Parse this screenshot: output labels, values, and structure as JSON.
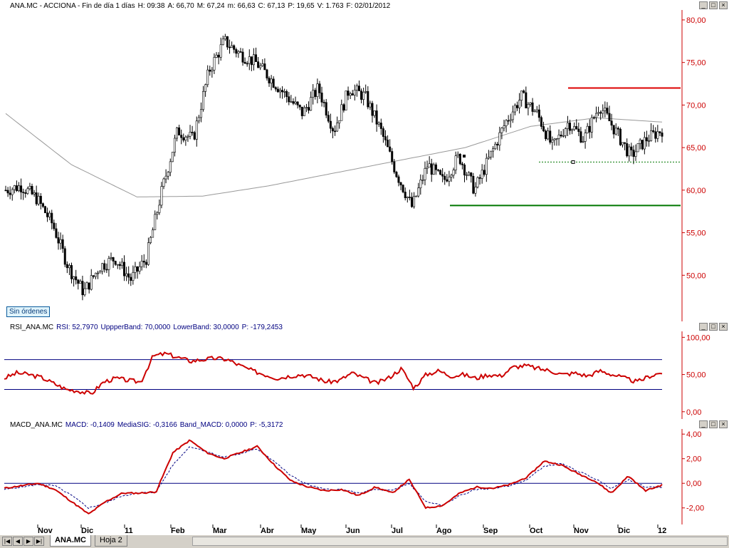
{
  "main_panel": {
    "title_parts": [
      "ANA.MC - ACCIONA - Fin de día 1 días",
      "H: 09:38",
      "A: 66,70",
      "M: 67,24",
      "m: 66,63",
      "C: 67,13",
      "P: 19,65",
      "V: 1.763",
      "F: 02/01/2012"
    ],
    "status_badge": "Sin órdenes",
    "colors": {
      "price_axis": "#cc0000",
      "resistance": "#dd0000",
      "support": "#007700",
      "ma": "#999999"
    }
  },
  "rsi_panel": {
    "title_parts": [
      "RSI_ANA.MC",
      "RSI: 52,7970",
      "UppperBand: 70,0000",
      "LowerBand: 30,0000",
      "P: -179,2453"
    ],
    "colors": {
      "line": "#cc0000",
      "band": "#000080"
    }
  },
  "macd_panel": {
    "title_parts": [
      "MACD_ANA.MC",
      "MACD: -0,1409",
      "MediaSIG: -0,3166",
      "Band_MACD: 0,0000",
      "P: -5,3172"
    ],
    "colors": {
      "line": "#cc0000",
      "signal": "#000080",
      "zero": "#000080"
    }
  },
  "window_buttons": [
    "_",
    "□",
    "×"
  ],
  "x_axis": {
    "labels": [
      "Nov",
      "Dic",
      "11",
      "Feb",
      "Mar",
      "Abr",
      "May",
      "Jun",
      "Jul",
      "Ago",
      "Sep",
      "Oct",
      "Nov",
      "Dic",
      "12"
    ]
  },
  "tabs": [
    "ANA.MC",
    "Hoja 2"
  ],
  "nav_buttons": [
    "|◀",
    "◀",
    "▶",
    "▶|"
  ],
  "chart_data": [
    {
      "type": "candlestick",
      "title": "ANA.MC - ACCIONA - Fin de día 1 días",
      "ylim": [
        45,
        81
      ],
      "yticks": [
        "80,00",
        "75,00",
        "70,00",
        "65,00",
        "60,00",
        "55,00",
        "50,00"
      ],
      "x": [
        "Oct",
        "Nov",
        "Dic",
        "11",
        "Feb",
        "Mar",
        "Abr",
        "May",
        "Jun",
        "Jul",
        "Ago",
        "Sep",
        "Oct",
        "Nov",
        "Dic",
        "12"
      ],
      "close_approx": [
        60,
        60.5,
        59,
        56,
        51,
        48,
        51,
        52,
        49.5,
        52,
        60,
        67,
        66,
        74,
        77.5,
        76,
        75,
        73,
        71,
        69,
        72,
        67,
        72,
        71,
        67,
        62,
        58,
        63,
        61,
        64,
        60,
        64,
        68,
        71,
        69,
        65,
        68,
        66,
        70,
        67,
        64,
        66,
        67.1
      ],
      "ma_approx": [
        69,
        63,
        59.2,
        59.3,
        60.5,
        62,
        63.5,
        65,
        67.5,
        68.5,
        68
      ],
      "lines": [
        {
          "name": "resistance",
          "value": 72.0
        },
        {
          "name": "support",
          "value": 58.2
        },
        {
          "name": "dotted",
          "value": 63.3
        }
      ]
    },
    {
      "type": "line",
      "title": "RSI_ANA.MC",
      "ylim": [
        -5,
        108
      ],
      "yticks": [
        "100,00",
        "50,00",
        "0,00"
      ],
      "bands": [
        70,
        30
      ],
      "values": [
        45,
        52,
        50,
        46,
        38,
        30,
        28,
        24,
        40,
        45,
        42,
        40,
        75,
        78,
        73,
        68,
        70,
        72,
        70,
        62,
        55,
        50,
        45,
        48,
        50,
        46,
        40,
        42,
        52,
        45,
        38,
        46,
        58,
        32,
        50,
        55,
        48,
        50,
        45,
        50,
        48,
        60,
        62,
        58,
        55,
        50,
        52,
        48,
        55,
        50,
        45,
        40,
        48,
        52.8
      ]
    },
    {
      "type": "line",
      "title": "MACD_ANA.MC",
      "ylim": [
        -3,
        4.3
      ],
      "yticks": [
        "4,00",
        "2,00",
        "0,00",
        "-2,00"
      ],
      "series": [
        {
          "name": "MACD",
          "values": [
            -0.4,
            -0.2,
            0.0,
            -0.5,
            -1.5,
            -2.5,
            -1.5,
            -0.8,
            -0.8,
            -0.7,
            2.5,
            3.5,
            2.5,
            2.0,
            2.5,
            3.0,
            1.5,
            0.2,
            -0.3,
            -0.6,
            -0.5,
            -1.0,
            -0.3,
            -0.8,
            0.3,
            -2.0,
            -1.8,
            -0.8,
            -0.3,
            -0.4,
            -0.1,
            0.5,
            1.8,
            1.5,
            0.8,
            0.2,
            -0.8,
            0.6,
            -0.6,
            -0.14
          ]
        },
        {
          "name": "MediaSIG",
          "values": [
            -0.5,
            -0.3,
            -0.1,
            -0.2,
            -1.0,
            -2.0,
            -1.6,
            -1.0,
            -0.8,
            -0.7,
            1.5,
            3.0,
            2.6,
            2.1,
            2.4,
            2.8,
            1.8,
            0.6,
            -0.1,
            -0.5,
            -0.5,
            -0.8,
            -0.5,
            -0.6,
            0.0,
            -1.5,
            -1.8,
            -1.0,
            -0.5,
            -0.4,
            -0.2,
            0.3,
            1.4,
            1.6,
            1.0,
            0.4,
            -0.4,
            0.3,
            -0.3,
            -0.32
          ]
        }
      ],
      "zero_line": 0
    }
  ]
}
